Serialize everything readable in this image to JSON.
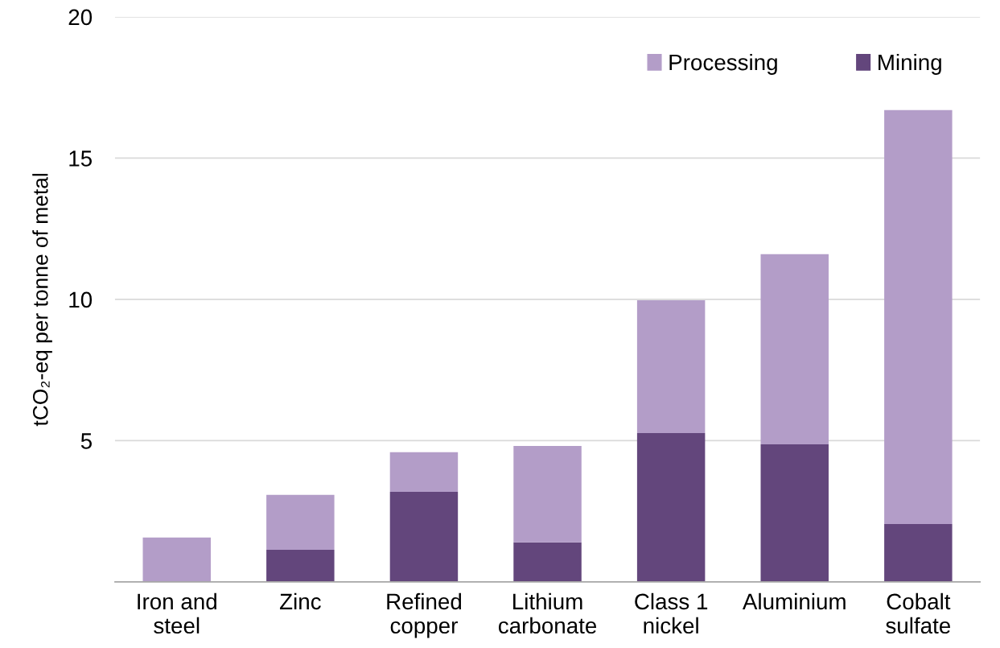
{
  "chart_data": {
    "type": "bar",
    "stacked": true,
    "ylabel": "tCO₂-eq per tonne of metal",
    "categories": [
      "Iron and\nsteel",
      "Zinc",
      "Refined\ncopper",
      "Lithium\ncarbonate",
      "Class 1\nnickel",
      "Aluminium",
      "Cobalt\nsulfate"
    ],
    "series": [
      {
        "name": "Mining",
        "color": "#63467c",
        "values": [
          0,
          1.14,
          3.19,
          1.4,
          5.27,
          4.87,
          2.05
        ]
      },
      {
        "name": "Processing",
        "color": "#b39dc8",
        "values": [
          1.57,
          1.94,
          1.4,
          3.41,
          4.7,
          6.73,
          14.65
        ]
      }
    ],
    "ylim": [
      0,
      20
    ],
    "yticks": [
      {
        "value": 0,
        "label": null
      },
      5,
      10,
      15,
      20
    ],
    "grid": "y",
    "legend": "top right"
  }
}
